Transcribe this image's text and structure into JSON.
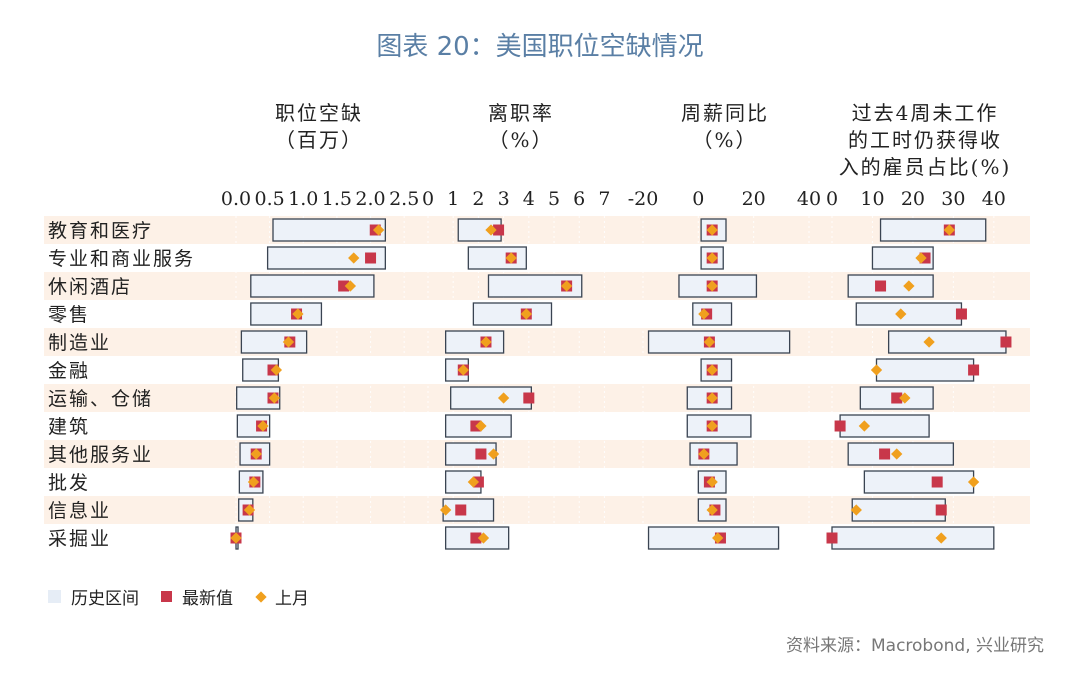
{
  "title": "图表 20：美国职位空缺情况",
  "source": "资料来源：Macrobond, 兴业研究",
  "legend": {
    "hist": "历史区间",
    "latest": "最新值",
    "prev": "上月"
  },
  "colors": {
    "band": "#fdf1e7",
    "box_fill": "#edf2f9",
    "box_stroke": "#3a4452",
    "latest": "#c8374a",
    "prev": "#f0a01e",
    "title": "#5a7fa5"
  },
  "chart_data": {
    "type": "range-dot",
    "categories": [
      "教育和医疗",
      "专业和商业服务",
      "休闲酒店",
      "零售",
      "制造业",
      "金融",
      "运输、仓储",
      "建筑",
      "其他服务业",
      "批发",
      "信息业",
      "采掘业"
    ],
    "panels": [
      {
        "header": [
          "职位空缺",
          "（百万）"
        ],
        "ticks": [
          "0.0",
          "0.5",
          "1.0",
          "1.5",
          "2.0",
          "2.5"
        ],
        "xlim": [
          0,
          2.75
        ],
        "range_min": [
          0.55,
          0.47,
          0.22,
          0.22,
          0.08,
          0.1,
          0.01,
          0.02,
          0.06,
          0.05,
          0.04,
          0.0
        ],
        "range_max": [
          2.22,
          2.22,
          2.05,
          1.27,
          1.05,
          0.63,
          0.65,
          0.5,
          0.5,
          0.4,
          0.25,
          0.03
        ],
        "latest": [
          2.07,
          2.0,
          1.6,
          0.9,
          0.8,
          0.55,
          0.55,
          0.38,
          0.3,
          0.28,
          0.18,
          0.0
        ],
        "prev": [
          2.12,
          1.75,
          1.7,
          0.92,
          0.78,
          0.6,
          0.57,
          0.4,
          0.3,
          0.26,
          0.2,
          0.0
        ]
      },
      {
        "header": [
          "离职率",
          "（%）"
        ],
        "ticks": [
          "0",
          "1",
          "2",
          "3",
          "4",
          "5",
          "6",
          "7"
        ],
        "xlim": [
          0,
          7.3
        ],
        "range_min": [
          1.2,
          1.6,
          2.4,
          1.8,
          0.7,
          0.7,
          0.9,
          0.7,
          0.7,
          0.7,
          0.6,
          0.7
        ],
        "range_max": [
          2.9,
          3.9,
          6.1,
          4.9,
          3.0,
          1.6,
          4.1,
          3.3,
          2.7,
          2.1,
          2.6,
          3.2
        ],
        "latest": [
          2.8,
          3.3,
          5.5,
          3.9,
          2.3,
          1.4,
          4.0,
          1.9,
          2.1,
          2.0,
          1.3,
          1.9
        ],
        "prev": [
          2.5,
          3.3,
          5.5,
          3.9,
          2.3,
          1.4,
          3.0,
          2.1,
          2.6,
          1.8,
          0.7,
          2.2
        ]
      },
      {
        "header": [
          "周薪同比",
          "（%）"
        ],
        "ticks": [
          "-20",
          "0",
          "20",
          "40"
        ],
        "xlim": [
          -20,
          40
        ],
        "range_min": [
          1,
          1,
          -7,
          -2,
          -18,
          1,
          -4,
          -4,
          -3,
          0,
          0,
          -18
        ],
        "range_max": [
          10,
          9,
          21,
          12,
          33,
          12,
          12,
          19,
          14,
          10,
          10,
          29
        ],
        "latest": [
          5,
          5,
          5,
          3,
          4,
          5,
          5,
          5,
          2,
          4,
          6,
          8
        ],
        "prev": [
          5,
          5,
          5,
          2,
          4,
          5,
          5,
          5,
          2,
          5,
          5,
          7
        ]
      },
      {
        "header": [
          "过去4周未工作",
          "的工时仍获得收",
          "入的雇员占比(%)"
        ],
        "ticks": [
          "0",
          "10",
          "20",
          "30",
          "40"
        ],
        "xlim": [
          0,
          44
        ],
        "range_min": [
          12,
          10,
          4,
          6,
          14,
          11,
          7,
          2,
          4,
          8,
          5,
          0
        ],
        "range_max": [
          38,
          25,
          25,
          32,
          43,
          35,
          25,
          24,
          30,
          35,
          28,
          40
        ],
        "latest": [
          29,
          23,
          12,
          32,
          43,
          35,
          16,
          2,
          13,
          26,
          27,
          0
        ],
        "prev": [
          29,
          22,
          19,
          17,
          24,
          11,
          18,
          8,
          16,
          35,
          6,
          27
        ]
      }
    ]
  }
}
